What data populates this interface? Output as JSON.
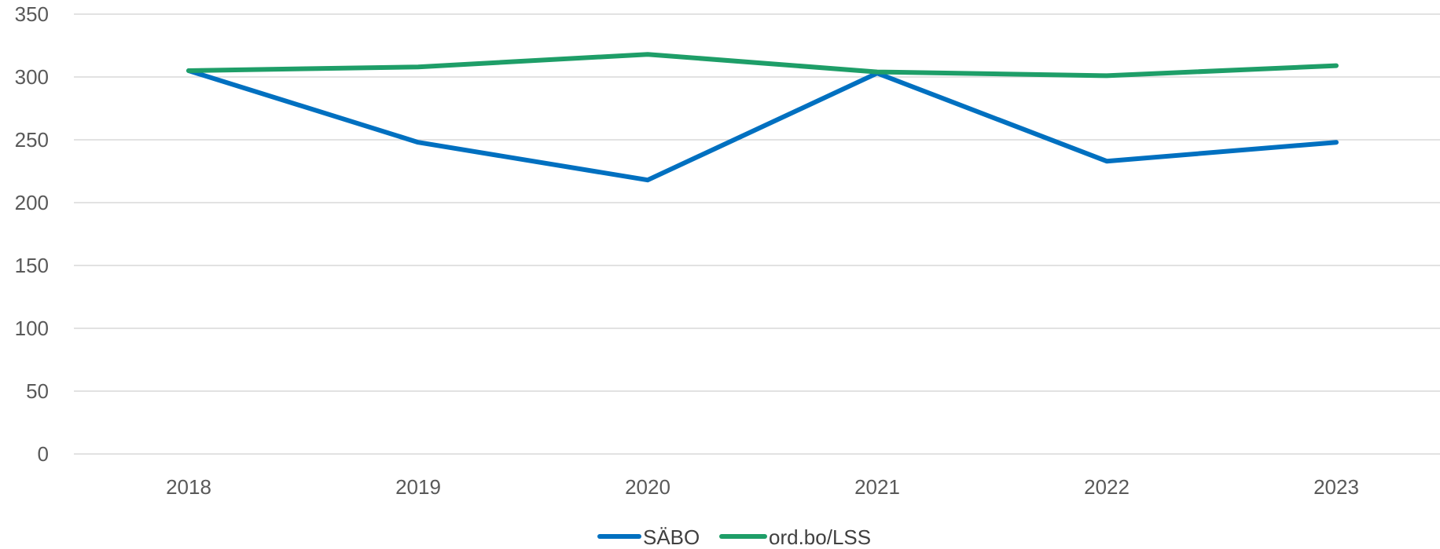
{
  "chart_data": {
    "type": "line",
    "title": "",
    "xlabel": "",
    "ylabel": "",
    "categories": [
      "2018",
      "2019",
      "2020",
      "2021",
      "2022",
      "2023"
    ],
    "ylim": [
      0,
      350
    ],
    "yticks": [
      0,
      50,
      100,
      150,
      200,
      250,
      300,
      350
    ],
    "grid": true,
    "legend_position": "bottom",
    "series": [
      {
        "name": "SÄBO",
        "color": "#0070C0",
        "values": [
          305,
          248,
          218,
          303,
          233,
          248
        ]
      },
      {
        "name": "ord.bo/LSS",
        "color": "#1E9E68",
        "values": [
          305,
          308,
          318,
          304,
          301,
          309
        ]
      }
    ]
  }
}
